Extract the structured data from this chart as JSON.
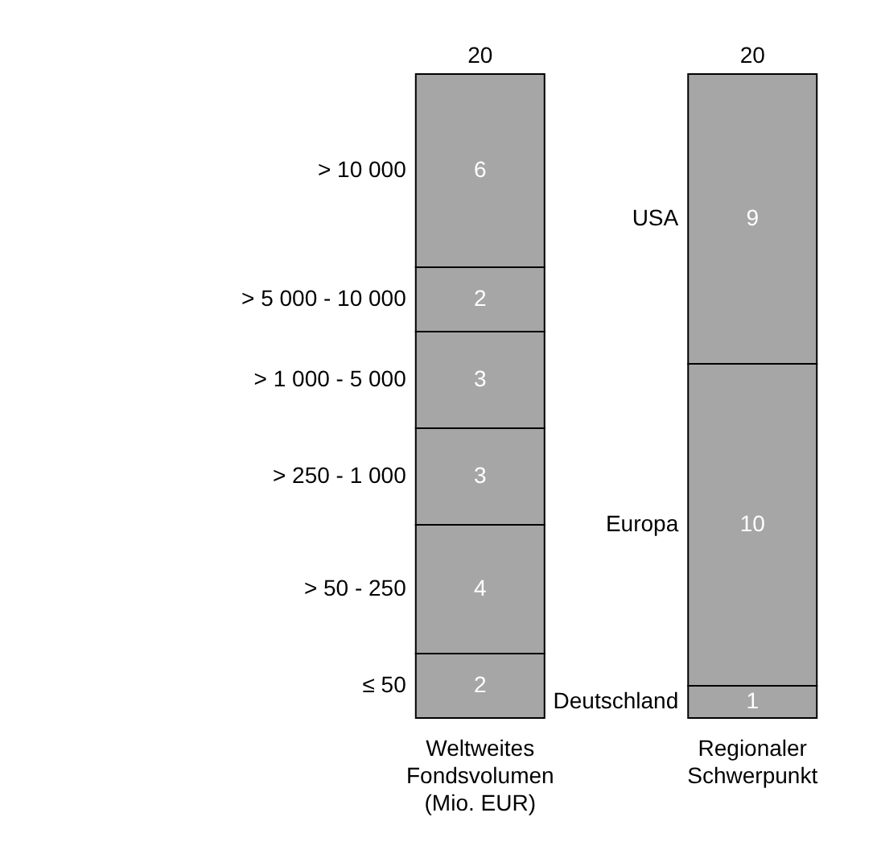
{
  "chart_data": {
    "type": "bar",
    "stacked": true,
    "data_labels": true,
    "categories": [
      "Weltweites Fondsvolumen (Mio. EUR)",
      "Regionaler Schwerpunkt"
    ],
    "series": [
      {
        "name": "≤ 50",
        "color": "#a6a6a6",
        "values": [
          2,
          null
        ]
      },
      {
        "name": "> 50 - 250",
        "color": "#a6a6a6",
        "values": [
          4,
          null
        ]
      },
      {
        "name": "> 250 - 1 000",
        "color": "#a6a6a6",
        "values": [
          3,
          null
        ]
      },
      {
        "name": "> 1 000 - 5 000",
        "color": "#a6a6a6",
        "values": [
          3,
          null
        ]
      },
      {
        "name": "> 5 000 - 10 000",
        "color": "#a6a6a6",
        "values": [
          2,
          null
        ]
      },
      {
        "name": "> 10 000",
        "color": "#a6a6a6",
        "values": [
          6,
          null
        ]
      },
      {
        "name": "Deutschland",
        "color": "#a6a6a6",
        "values": [
          null,
          1
        ]
      },
      {
        "name": "Europa",
        "color": "#a6a6a6",
        "values": [
          null,
          10
        ]
      },
      {
        "name": "USA",
        "color": "#a6a6a6",
        "values": [
          null,
          9
        ]
      }
    ],
    "totals": [
      "20",
      "20"
    ]
  }
}
